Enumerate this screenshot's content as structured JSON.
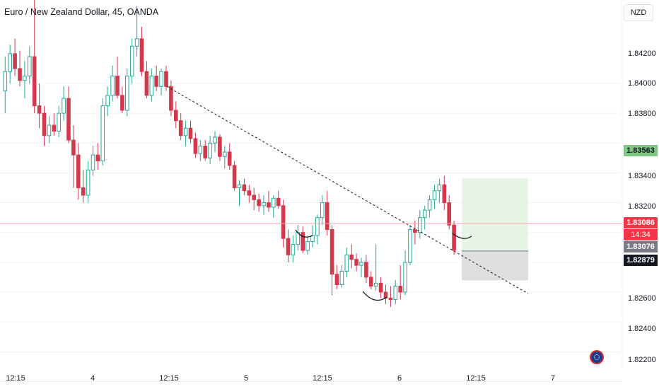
{
  "chart_title": "Euro / New Zealand Dollar, 45, OANDA",
  "currency_button": "NZD",
  "price_axis": [
    "1.84200",
    "1.84000",
    "1.83800",
    "1.83400",
    "1.83200",
    "1.82600",
    "1.82400",
    "1.82200"
  ],
  "time_axis": [
    "12:15",
    "4",
    "12:15",
    "5",
    "12:15",
    "6",
    "12:15",
    "7"
  ],
  "badges": {
    "target": "1.83563",
    "last_price": "1.83086",
    "countdown": "14:34",
    "entry": "1.83076",
    "stop": "1.82879"
  },
  "colors": {
    "up": "#26a69a",
    "down": "#d1394d",
    "profit_zone": "#e8f5e6",
    "loss_zone": "#dedede"
  },
  "chart_data": {
    "type": "candlestick",
    "symbol": "EURNZD",
    "interval": "45",
    "source": "OANDA",
    "ylim": [
      1.8215,
      1.8476
    ],
    "candles": [
      [
        1.8415,
        1.8438,
        1.84,
        1.8428
      ],
      [
        1.8428,
        1.8446,
        1.842,
        1.844
      ],
      [
        1.844,
        1.845,
        1.8425,
        1.843
      ],
      [
        1.843,
        1.8442,
        1.8418,
        1.8422
      ],
      [
        1.8422,
        1.8435,
        1.841,
        1.8425
      ],
      [
        1.8425,
        1.8445,
        1.842,
        1.8438
      ],
      [
        1.8438,
        1.8478,
        1.84,
        1.8405
      ],
      [
        1.8405,
        1.842,
        1.839,
        1.84
      ],
      [
        1.84,
        1.8405,
        1.8378,
        1.8385
      ],
      [
        1.8385,
        1.8398,
        1.838,
        1.8392
      ],
      [
        1.8392,
        1.84,
        1.8385,
        1.8388
      ],
      [
        1.8388,
        1.8405,
        1.8384,
        1.84
      ],
      [
        1.84,
        1.8418,
        1.8395,
        1.841
      ],
      [
        1.841,
        1.8418,
        1.838,
        1.8382
      ],
      [
        1.8382,
        1.8392,
        1.835,
        1.8372
      ],
      [
        1.8372,
        1.838,
        1.8342,
        1.835
      ],
      [
        1.835,
        1.8362,
        1.834,
        1.8345
      ],
      [
        1.8345,
        1.8368,
        1.834,
        1.8362
      ],
      [
        1.8362,
        1.8378,
        1.8358,
        1.8372
      ],
      [
        1.8372,
        1.838,
        1.8362,
        1.8368
      ],
      [
        1.8368,
        1.841,
        1.8365,
        1.8405
      ],
      [
        1.8405,
        1.8418,
        1.8398,
        1.8412
      ],
      [
        1.8412,
        1.8432,
        1.8408,
        1.8425
      ],
      [
        1.8425,
        1.8438,
        1.841,
        1.8412
      ],
      [
        1.8412,
        1.8418,
        1.84,
        1.8402
      ],
      [
        1.8402,
        1.843,
        1.8398,
        1.8425
      ],
      [
        1.8425,
        1.845,
        1.842,
        1.8445
      ],
      [
        1.8445,
        1.8472,
        1.8438,
        1.845
      ],
      [
        1.845,
        1.8458,
        1.8425,
        1.8428
      ],
      [
        1.8428,
        1.8435,
        1.841,
        1.8412
      ],
      [
        1.8412,
        1.843,
        1.8408,
        1.8425
      ],
      [
        1.8425,
        1.8432,
        1.8415,
        1.8418
      ],
      [
        1.8418,
        1.843,
        1.8412,
        1.8428
      ],
      [
        1.8428,
        1.8432,
        1.8415,
        1.8418
      ],
      [
        1.8418,
        1.8422,
        1.8398,
        1.8402
      ],
      [
        1.8402,
        1.8408,
        1.839,
        1.8395
      ],
      [
        1.8395,
        1.84,
        1.8382,
        1.8385
      ],
      [
        1.8385,
        1.8395,
        1.8378,
        1.839
      ],
      [
        1.839,
        1.8395,
        1.838,
        1.8383
      ],
      [
        1.8383,
        1.8387,
        1.837,
        1.8373
      ],
      [
        1.8373,
        1.8382,
        1.8368,
        1.8378
      ],
      [
        1.8378,
        1.8382,
        1.8368,
        1.837
      ],
      [
        1.837,
        1.8385,
        1.8366,
        1.838
      ],
      [
        1.838,
        1.8388,
        1.8374,
        1.8384
      ],
      [
        1.8384,
        1.8386,
        1.8368,
        1.8371
      ],
      [
        1.8371,
        1.8378,
        1.8363,
        1.8374
      ],
      [
        1.8374,
        1.838,
        1.8362,
        1.8365
      ],
      [
        1.8365,
        1.8368,
        1.8348,
        1.835
      ],
      [
        1.835,
        1.8355,
        1.8338,
        1.8352
      ],
      [
        1.8352,
        1.8356,
        1.8345,
        1.8348
      ],
      [
        1.8348,
        1.8352,
        1.834,
        1.8345
      ],
      [
        1.8345,
        1.835,
        1.8335,
        1.8342
      ],
      [
        1.8342,
        1.8346,
        1.8334,
        1.8338
      ],
      [
        1.8338,
        1.8345,
        1.8332,
        1.834
      ],
      [
        1.834,
        1.8348,
        1.8334,
        1.8337
      ],
      [
        1.8337,
        1.8345,
        1.833,
        1.8343
      ],
      [
        1.8343,
        1.8348,
        1.8336,
        1.8338
      ],
      [
        1.8338,
        1.8342,
        1.831,
        1.8316
      ],
      [
        1.8316,
        1.8322,
        1.83,
        1.8305
      ],
      [
        1.8305,
        1.8318,
        1.83,
        1.8312
      ],
      [
        1.8312,
        1.8325,
        1.8308,
        1.832
      ],
      [
        1.832,
        1.8324,
        1.8306,
        1.8308
      ],
      [
        1.8308,
        1.8318,
        1.8305,
        1.8314
      ],
      [
        1.8314,
        1.8325,
        1.831,
        1.8318
      ],
      [
        1.8318,
        1.8332,
        1.8312,
        1.833
      ],
      [
        1.833,
        1.8345,
        1.8325,
        1.834
      ],
      [
        1.834,
        1.8348,
        1.8318,
        1.8322
      ],
      [
        1.8322,
        1.8325,
        1.8278,
        1.8292
      ],
      [
        1.8292,
        1.8298,
        1.8282,
        1.8285
      ],
      [
        1.8285,
        1.8298,
        1.8283,
        1.8294
      ],
      [
        1.8294,
        1.831,
        1.829,
        1.8305
      ],
      [
        1.8305,
        1.8312,
        1.8296,
        1.8302
      ],
      [
        1.8302,
        1.8306,
        1.8294,
        1.8298
      ],
      [
        1.8298,
        1.8303,
        1.829,
        1.83
      ],
      [
        1.83,
        1.8305,
        1.8286,
        1.829
      ],
      [
        1.829,
        1.8294,
        1.8282,
        1.8284
      ],
      [
        1.8284,
        1.8312,
        1.8281,
        1.8286
      ],
      [
        1.8286,
        1.829,
        1.8276,
        1.828
      ],
      [
        1.828,
        1.8285,
        1.8272,
        1.8276
      ],
      [
        1.8276,
        1.8284,
        1.827,
        1.8275
      ],
      [
        1.8275,
        1.8288,
        1.8272,
        1.8284
      ],
      [
        1.8284,
        1.8298,
        1.8275,
        1.828
      ],
      [
        1.828,
        1.8308,
        1.8278,
        1.83
      ],
      [
        1.83,
        1.8325,
        1.8298,
        1.8322
      ],
      [
        1.8322,
        1.8328,
        1.8312,
        1.832
      ],
      [
        1.832,
        1.8335,
        1.8316,
        1.833
      ],
      [
        1.833,
        1.8338,
        1.8322,
        1.8335
      ],
      [
        1.8335,
        1.8345,
        1.833,
        1.8342
      ],
      [
        1.8342,
        1.8352,
        1.8336,
        1.8348
      ],
      [
        1.8348,
        1.8356,
        1.834,
        1.8352
      ],
      [
        1.8352,
        1.8358,
        1.8335,
        1.834
      ],
      [
        1.834,
        1.8345,
        1.8322,
        1.8325
      ],
      [
        1.8325,
        1.8328,
        1.8305,
        1.8308
      ]
    ],
    "trendline": [
      [
        0,
        1.8418
      ],
      [
        1.0,
        1.8279
      ]
    ],
    "position": {
      "entry": 1.83076,
      "target": 1.83563,
      "stop": 1.82879,
      "last": 1.83086
    }
  }
}
